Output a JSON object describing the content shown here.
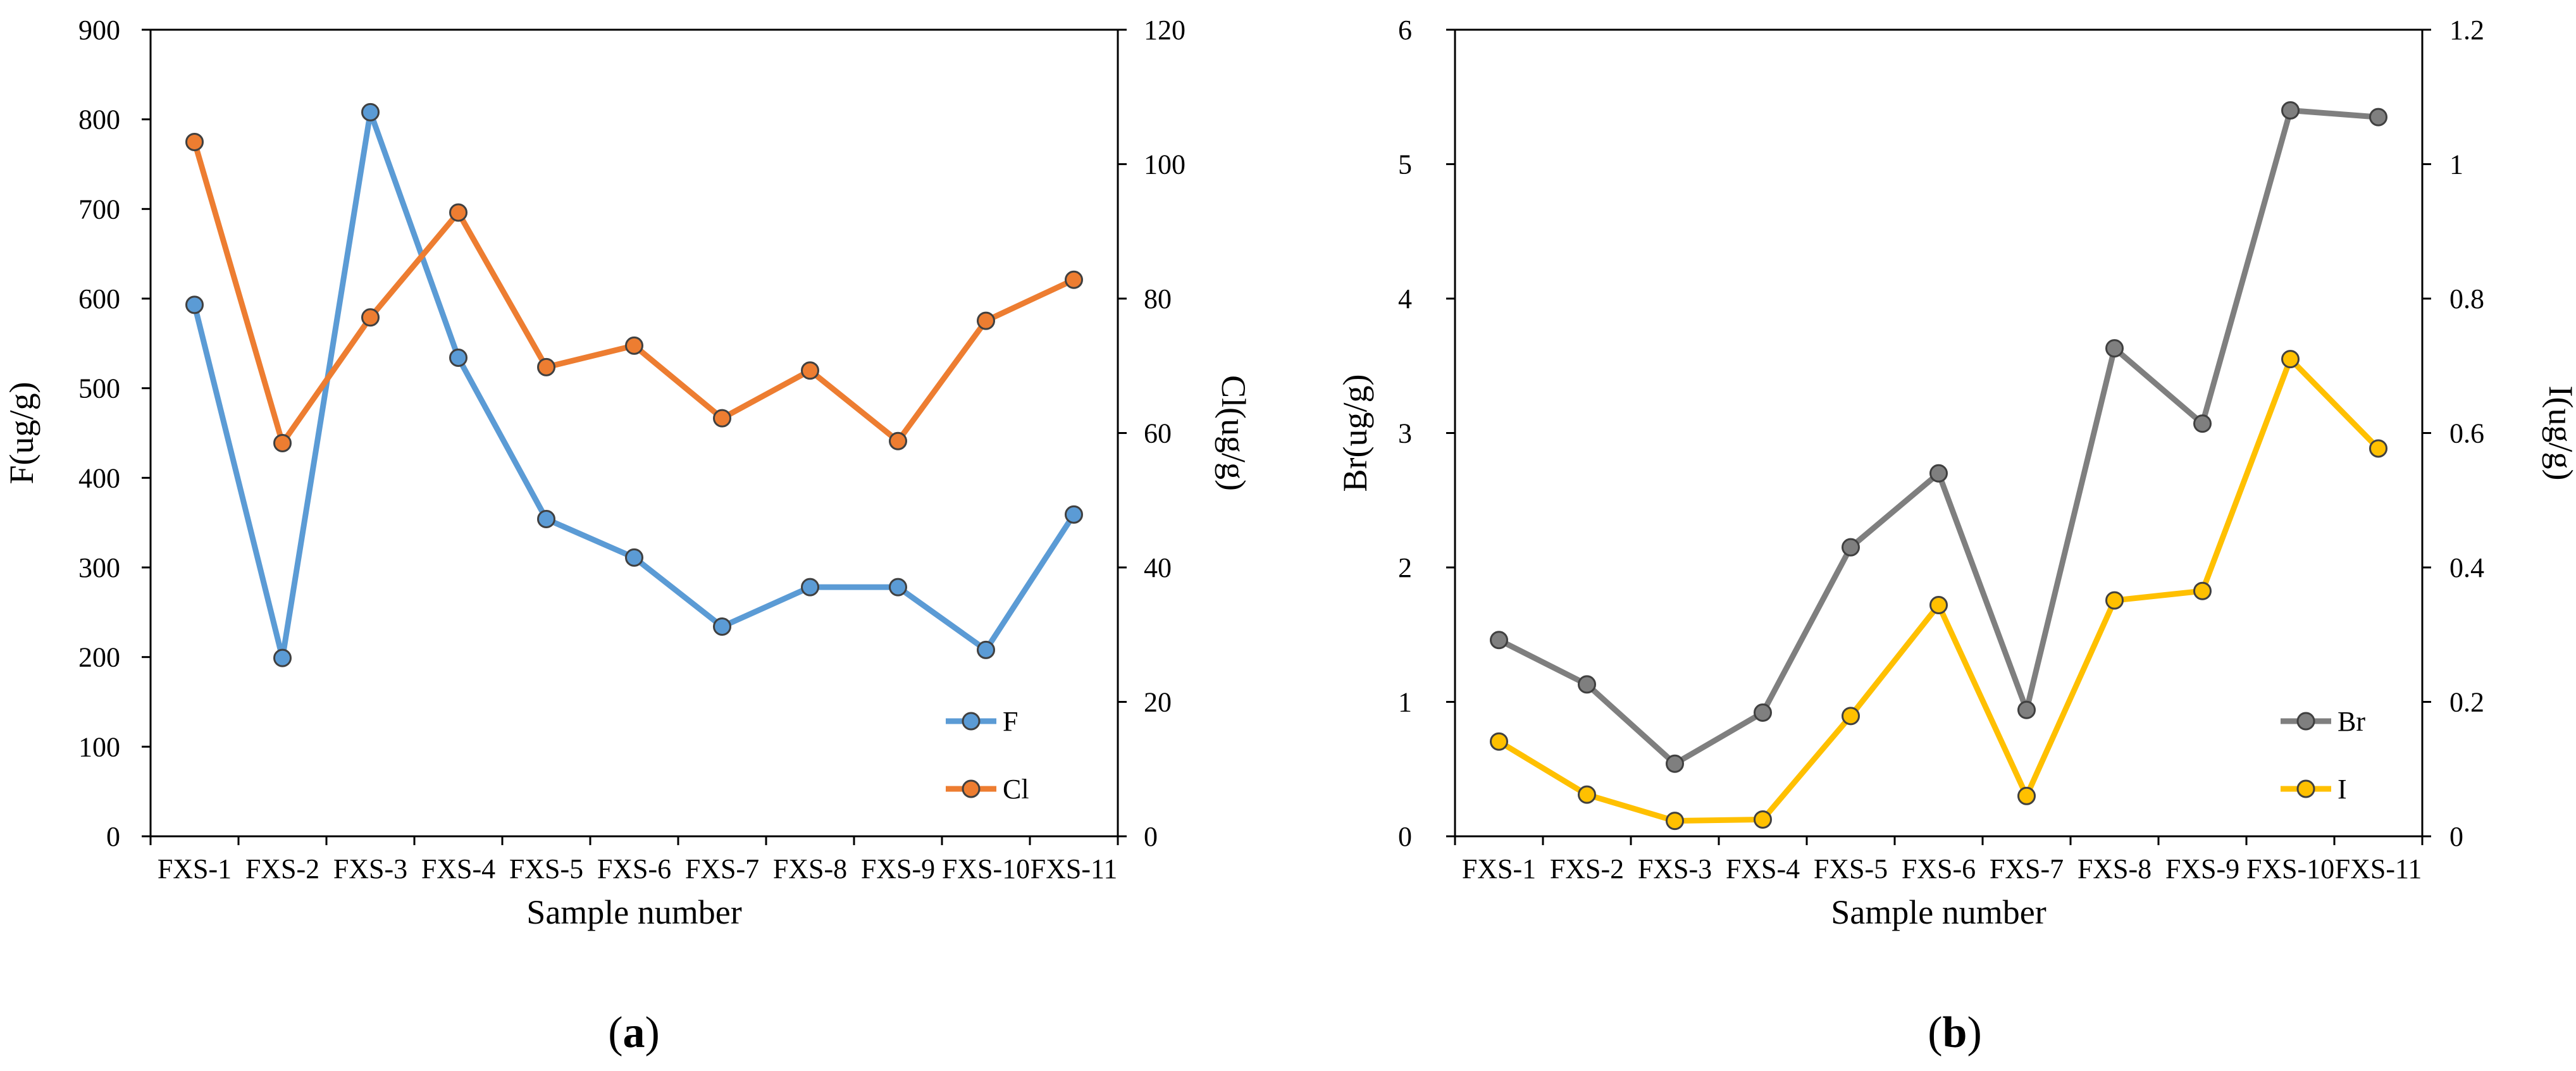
{
  "chart_data": [
    {
      "panel": "a",
      "panel_label": "(a)",
      "type": "line",
      "categories": [
        "FXS-1",
        "FXS-2",
        "FXS-3",
        "FXS-4",
        "FXS-5",
        "FXS-6",
        "FXS-7",
        "FXS-8",
        "FXS-9",
        "FXS-10",
        "FXS-11"
      ],
      "xlabel": "Sample number",
      "ylabel_left": "F(ug/g)",
      "ylabel_right": "Cl(ug/g)",
      "ylim_left": [
        0,
        900
      ],
      "ylim_right": [
        0,
        120
      ],
      "yticks_left": [
        0,
        100,
        200,
        300,
        400,
        500,
        600,
        700,
        800,
        900
      ],
      "yticks_right": [
        0,
        20,
        40,
        60,
        80,
        100,
        120
      ],
      "legend_position": "bottom-right",
      "series": [
        {
          "name": "F",
          "axis": "left",
          "color": "#5b9bd5",
          "values": [
            593,
            199,
            808,
            534,
            354,
            311,
            234,
            278,
            278,
            208,
            359
          ]
        },
        {
          "name": "Cl",
          "axis": "right",
          "color": "#ed7d31",
          "values": [
            103.3,
            58.5,
            77.2,
            92.8,
            69.8,
            73.0,
            62.2,
            69.3,
            58.8,
            76.7,
            82.8
          ]
        }
      ]
    },
    {
      "panel": "b",
      "panel_label": "(b)",
      "type": "line",
      "categories": [
        "FXS-1",
        "FXS-2",
        "FXS-3",
        "FXS-4",
        "FXS-5",
        "FXS-6",
        "FXS-7",
        "FXS-8",
        "FXS-9",
        "FXS-10",
        "FXS-11"
      ],
      "xlabel": "Sample number",
      "ylabel_left": "Br(ug/g)",
      "ylabel_right": "I(ug/g)",
      "ylim_left": [
        0,
        6
      ],
      "ylim_right": [
        0,
        1.2
      ],
      "yticks_left": [
        0,
        1,
        2,
        3,
        4,
        5,
        6
      ],
      "yticks_right": [
        0,
        0.2,
        0.4,
        0.6,
        0.8,
        1,
        1.2
      ],
      "yticklabels_right": [
        "0",
        "0.2",
        "0.4",
        "0.6",
        "0.8",
        "1",
        "1.2"
      ],
      "legend_position": "bottom-right",
      "series": [
        {
          "name": "Br",
          "axis": "left",
          "color": "#7f7f7f",
          "values": [
            1.46,
            1.13,
            0.54,
            0.92,
            2.15,
            2.7,
            0.94,
            3.63,
            3.07,
            5.4,
            5.35
          ]
        },
        {
          "name": "I",
          "axis": "right",
          "color": "#ffc000",
          "values": [
            0.141,
            0.062,
            0.023,
            0.025,
            0.179,
            0.344,
            0.06,
            0.351,
            0.365,
            0.71,
            0.577
          ]
        }
      ]
    }
  ]
}
